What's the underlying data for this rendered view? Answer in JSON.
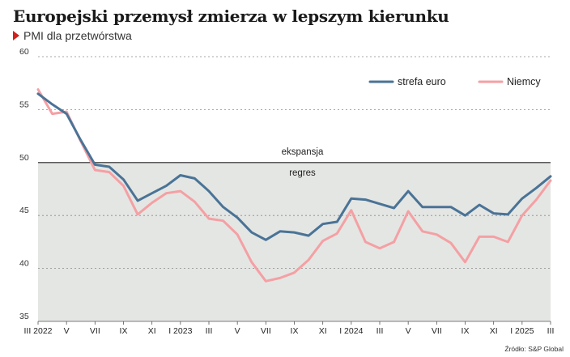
{
  "title": "Europejski przemysł zmierza w lepszym kierunku",
  "subtitle": "PMI dla przetwórstwa",
  "source": "Źródło: S&P Global",
  "chart_data": {
    "type": "line",
    "title": "Europejski przemysł zmierza w lepszym kierunku",
    "subtitle": "PMI dla przetwórstwa",
    "x": [
      "III 2022",
      "IV",
      "V",
      "VI",
      "VII",
      "VIII",
      "IX",
      "X",
      "XI",
      "XII",
      "I 2023",
      "II",
      "III",
      "IV",
      "V",
      "VI",
      "VII",
      "VIII",
      "IX",
      "X",
      "XI",
      "XII",
      "I 2024",
      "II",
      "III",
      "IV",
      "V",
      "VI",
      "VII",
      "VIII",
      "IX",
      "X",
      "XI",
      "XII",
      "I 2025",
      "II",
      "III"
    ],
    "x_tick_labels": [
      "III 2022",
      "V",
      "VII",
      "IX",
      "XI",
      "I 2023",
      "III",
      "V",
      "VII",
      "IX",
      "XI",
      "I 2024",
      "III",
      "V",
      "VII",
      "IX",
      "XI",
      "I 2025",
      "III"
    ],
    "ylim": [
      35,
      60
    ],
    "y_ticks": [
      35,
      40,
      45,
      50,
      55,
      60
    ],
    "grid": "horizontal dotted",
    "legend_position": "top-right",
    "threshold": {
      "value": 50,
      "label_above": "ekspansja",
      "label_below": "regres"
    },
    "series": [
      {
        "name": "strefa euro",
        "color": "#4a7396",
        "values": [
          56.5,
          55.5,
          54.6,
          52.1,
          49.8,
          49.6,
          48.4,
          46.4,
          47.1,
          47.8,
          48.8,
          48.5,
          47.3,
          45.8,
          44.8,
          43.4,
          42.7,
          43.5,
          43.4,
          43.1,
          44.2,
          44.4,
          46.6,
          46.5,
          46.1,
          45.7,
          47.3,
          45.8,
          45.8,
          45.8,
          45.0,
          46.0,
          45.2,
          45.1,
          46.6,
          47.6,
          48.7
        ]
      },
      {
        "name": "Niemcy",
        "color": "#f4a0a4",
        "values": [
          56.9,
          54.6,
          54.8,
          52.0,
          49.3,
          49.1,
          47.8,
          45.1,
          46.2,
          47.1,
          47.3,
          46.3,
          44.7,
          44.5,
          43.2,
          40.6,
          38.8,
          39.1,
          39.6,
          40.8,
          42.6,
          43.3,
          45.5,
          42.5,
          41.9,
          42.5,
          45.4,
          43.5,
          43.2,
          42.4,
          40.6,
          43.0,
          43.0,
          42.5,
          45.0,
          46.5,
          48.3
        ]
      }
    ]
  },
  "colors": {
    "accent": "#d0211c",
    "shade": "#e4e6e3",
    "grid": "#8a8a8a"
  }
}
